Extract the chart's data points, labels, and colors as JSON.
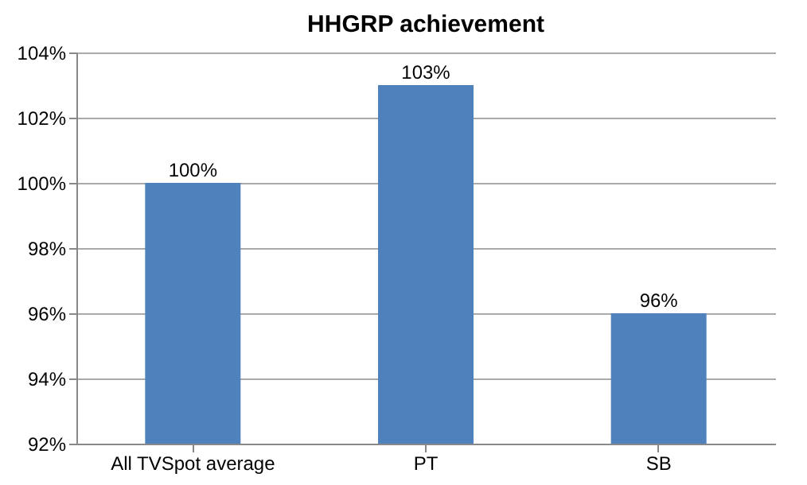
{
  "chart_data": {
    "type": "bar",
    "title": "HHGRP achievement",
    "categories": [
      "All TVSpot average",
      "PT",
      "SB"
    ],
    "values": [
      100,
      103,
      96
    ],
    "value_labels": [
      "100%",
      "103%",
      "96%"
    ],
    "color": "#4f81bd",
    "ylim": [
      92,
      104
    ],
    "yticks": [
      {
        "value": 92,
        "label": "92%"
      },
      {
        "value": 94,
        "label": "94%"
      },
      {
        "value": 96,
        "label": "96%"
      },
      {
        "value": 98,
        "label": "98%"
      },
      {
        "value": 100,
        "label": "100%"
      },
      {
        "value": 102,
        "label": "102%"
      },
      {
        "value": 104,
        "label": "104%"
      }
    ],
    "grid": "y"
  }
}
